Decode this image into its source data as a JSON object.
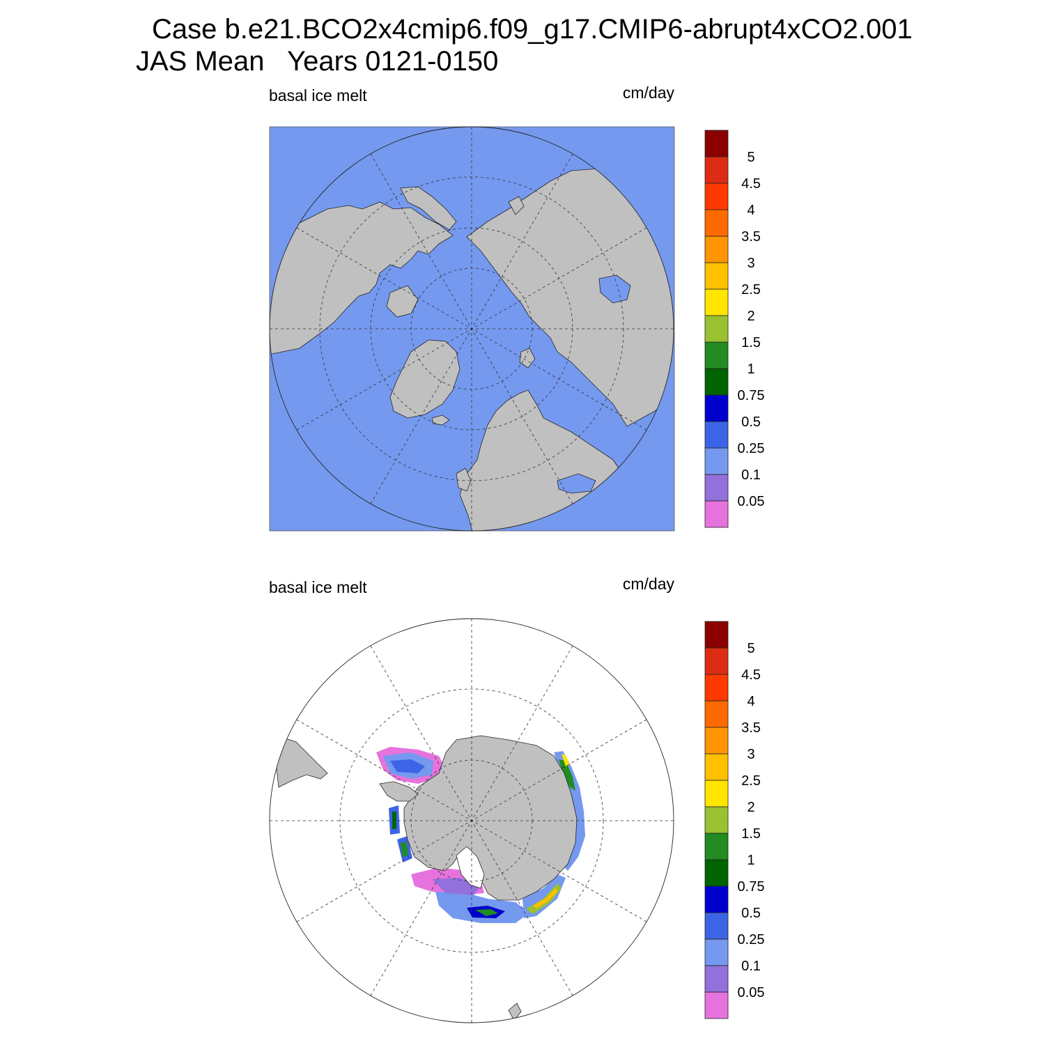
{
  "title": {
    "line1": "Case b.e21.BCO2x4cmip6.f09_g17.CMIP6-abrupt4xCO2.001",
    "line2": "JAS Mean   Years 0121-0150"
  },
  "panels": [
    {
      "id": "north",
      "left_label": "basal ice melt",
      "right_label": "cm/day",
      "hemisphere": "Northern",
      "ocean_color": "#7599ee"
    },
    {
      "id": "south",
      "left_label": "basal ice melt",
      "right_label": "cm/day",
      "hemisphere": "Southern",
      "ocean_color": "#ffffff"
    }
  ],
  "colorbar": {
    "levels": [
      "0.05",
      "0.1",
      "0.25",
      "0.5",
      "0.75",
      "1",
      "1.5",
      "2",
      "2.5",
      "3",
      "3.5",
      "4",
      "4.5",
      "5"
    ],
    "colors": [
      "#e673dd",
      "#9370db",
      "#7599ee",
      "#3c64e6",
      "#0000cd",
      "#006400",
      "#228b22",
      "#9ac130",
      "#ffe500",
      "#ffc000",
      "#ff9500",
      "#ff6a00",
      "#ff3a00",
      "#dd2c14",
      "#8b0000"
    ]
  },
  "style": {
    "land_color": "#c0c0c0",
    "grid_color": "#333333"
  }
}
